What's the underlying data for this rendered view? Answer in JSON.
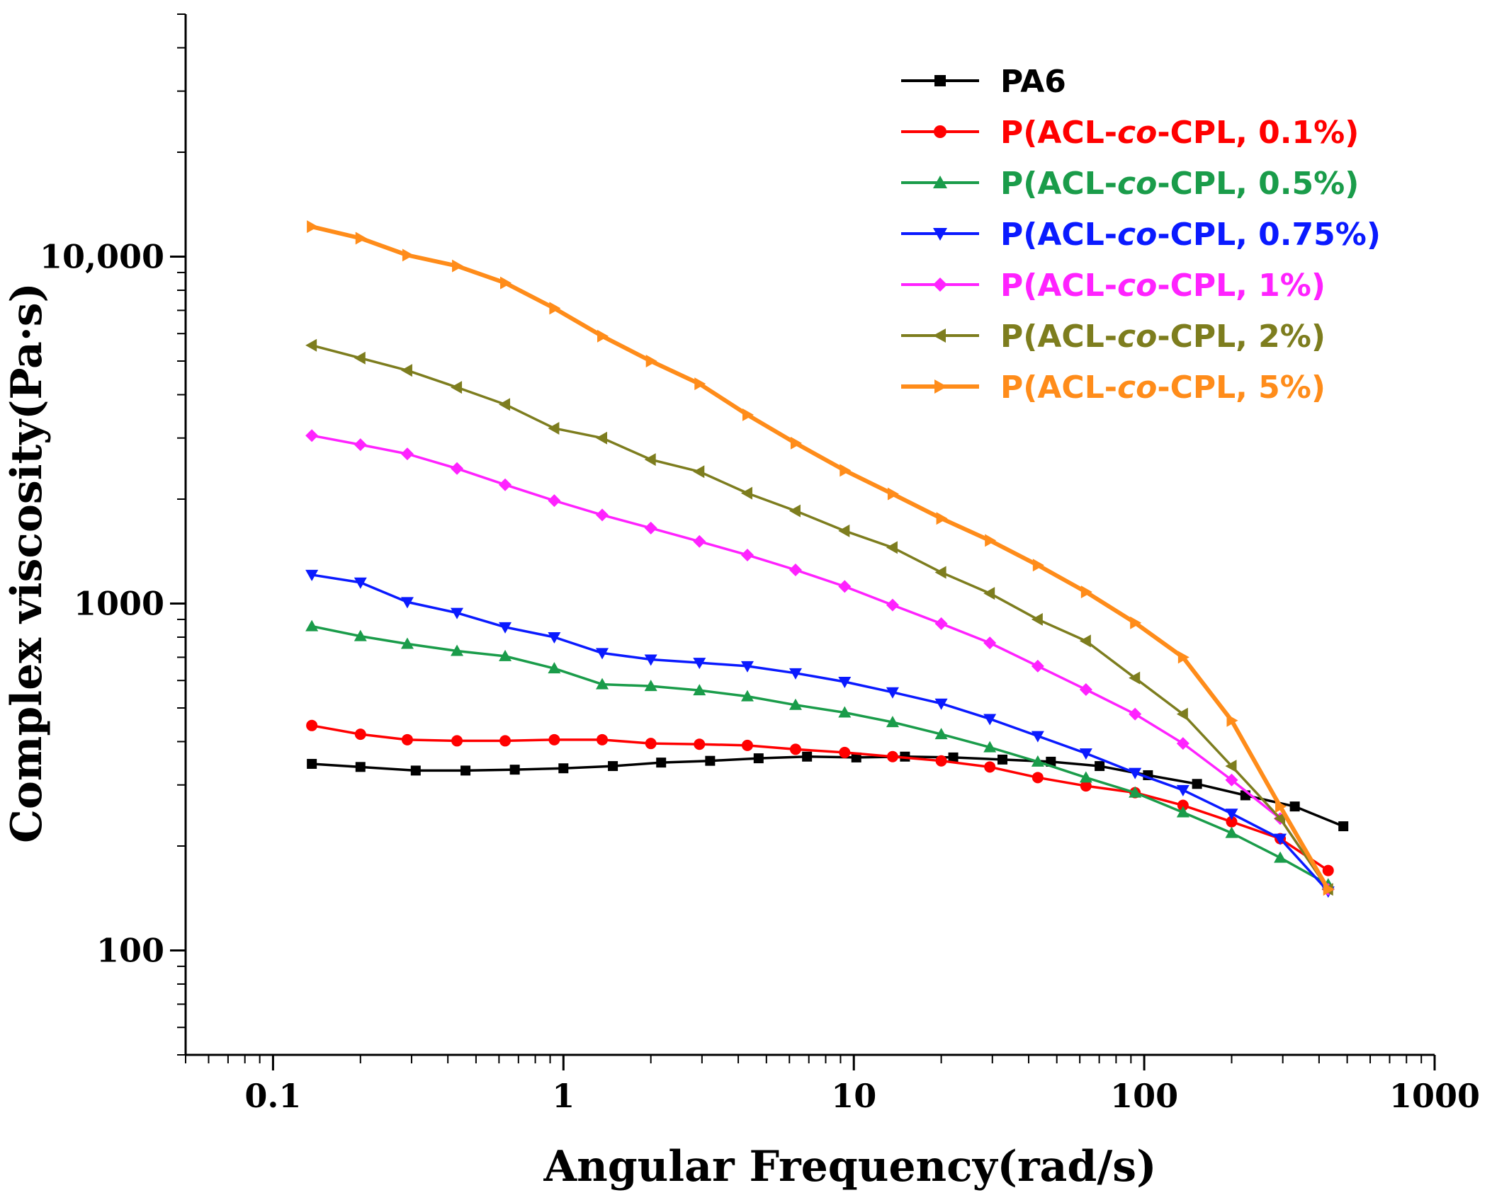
{
  "chart_data": {
    "type": "line",
    "title": "",
    "xlabel": "Angular Frequency(rad/s)",
    "ylabel": "Complex viscosity(Pa·s)",
    "xscale": "log",
    "yscale": "log",
    "xlim": [
      0.05,
      1000
    ],
    "ylim": [
      50,
      50000
    ],
    "x_ticks": [
      {
        "value": 0.1,
        "label": "0.1"
      },
      {
        "value": 1,
        "label": "1"
      },
      {
        "value": 10,
        "label": "10"
      },
      {
        "value": 100,
        "label": "100"
      },
      {
        "value": 1000,
        "label": "1000"
      }
    ],
    "y_ticks": [
      {
        "value": 100,
        "label": "100"
      },
      {
        "value": 1000,
        "label": "1000"
      },
      {
        "value": 10000,
        "label": "10,000"
      }
    ],
    "legend_position": "top-right",
    "series": [
      {
        "name": "PA6",
        "color": "#000000",
        "marker": "square",
        "x": [
          0.136,
          0.2,
          0.31,
          0.46,
          0.68,
          1.0,
          1.48,
          2.17,
          3.2,
          4.7,
          6.9,
          10.2,
          15.0,
          22.0,
          32.5,
          47.7,
          70.2,
          103,
          152,
          223,
          330,
          485
        ],
        "values": [
          345,
          338,
          330,
          330,
          332,
          335,
          340,
          348,
          352,
          358,
          362,
          360,
          362,
          360,
          355,
          350,
          340,
          320,
          302,
          280,
          260,
          228
        ]
      },
      {
        "name": "P(ACL-co-CPL, 0.1%)",
        "label_pre": "P(ACL-",
        "label_ital": "co",
        "label_post": "-CPL, 0.1%)",
        "color": "#ff0000",
        "marker": "circle",
        "x": [
          0.136,
          0.2,
          0.29,
          0.43,
          0.63,
          0.93,
          1.36,
          2.0,
          2.94,
          4.3,
          6.3,
          9.3,
          13.6,
          20.0,
          29.4,
          43.0,
          63.0,
          93.0,
          136,
          200,
          294,
          430
        ],
        "values": [
          445,
          420,
          405,
          402,
          402,
          405,
          405,
          395,
          393,
          390,
          380,
          372,
          362,
          352,
          338,
          315,
          298,
          285,
          262,
          235,
          210,
          170
        ]
      },
      {
        "name": "P(ACL-co-CPL, 0.5%)",
        "label_pre": "P(ACL-",
        "label_ital": "co",
        "label_post": "-CPL, 0.5%)",
        "color": "#1a9c4a",
        "marker": "triangle-up",
        "x": [
          0.136,
          0.2,
          0.29,
          0.43,
          0.63,
          0.93,
          1.36,
          2.0,
          2.94,
          4.3,
          6.3,
          9.3,
          13.6,
          20.0,
          29.4,
          43.0,
          63.0,
          93.0,
          136,
          200,
          294,
          430
        ],
        "values": [
          860,
          805,
          765,
          730,
          705,
          650,
          585,
          578,
          562,
          540,
          510,
          485,
          455,
          420,
          385,
          350,
          315,
          285,
          250,
          218,
          185,
          155
        ]
      },
      {
        "name": "P(ACL-co-CPL, 0.75%)",
        "label_pre": "P(ACL-",
        "label_ital": "co",
        "label_post": "-CPL, 0.75%)",
        "color": "#0a1aff",
        "marker": "triangle-down",
        "x": [
          0.136,
          0.2,
          0.29,
          0.43,
          0.63,
          0.93,
          1.36,
          2.0,
          2.94,
          4.3,
          6.3,
          9.3,
          13.6,
          20.0,
          29.4,
          43.0,
          63.0,
          93.0,
          136,
          200,
          294,
          430
        ],
        "values": [
          1210,
          1150,
          1010,
          940,
          855,
          800,
          720,
          690,
          675,
          660,
          630,
          595,
          555,
          515,
          465,
          415,
          370,
          325,
          290,
          248,
          210,
          148
        ]
      },
      {
        "name": "P(ACL-co-CPL, 1%)",
        "label_pre": "P(ACL-",
        "label_ital": "co",
        "label_post": "-CPL, 1%)",
        "color": "#ff22ff",
        "marker": "diamond",
        "x": [
          0.136,
          0.2,
          0.29,
          0.43,
          0.63,
          0.93,
          1.36,
          2.0,
          2.94,
          4.3,
          6.3,
          9.3,
          13.6,
          20.0,
          29.4,
          43.0,
          63.0,
          93.0,
          136,
          200,
          294,
          430
        ],
        "values": [
          3050,
          2870,
          2700,
          2450,
          2200,
          1980,
          1800,
          1650,
          1510,
          1380,
          1250,
          1120,
          990,
          875,
          770,
          660,
          565,
          480,
          395,
          310,
          240,
          150
        ]
      },
      {
        "name": "P(ACL-co-CPL, 2%)",
        "label_pre": "P(ACL-",
        "label_ital": "co",
        "label_post": "-CPL, 2%)",
        "color": "#7d7d1e",
        "marker": "triangle-left",
        "x": [
          0.136,
          0.2,
          0.29,
          0.43,
          0.63,
          0.93,
          1.36,
          2.0,
          2.94,
          4.3,
          6.3,
          9.3,
          13.6,
          20.0,
          29.4,
          43.0,
          63.0,
          93.0,
          136,
          200,
          294,
          430
        ],
        "values": [
          5550,
          5100,
          4700,
          4200,
          3750,
          3200,
          3000,
          2600,
          2400,
          2080,
          1850,
          1620,
          1450,
          1230,
          1070,
          900,
          780,
          610,
          480,
          340,
          240,
          150
        ]
      },
      {
        "name": "P(ACL-co-CPL, 5%)",
        "label_pre": "P(ACL-",
        "label_ital": "co",
        "label_post": "-CPL, 5%)",
        "color": "#ff8c1a",
        "marker": "triangle-right",
        "x": [
          0.136,
          0.2,
          0.29,
          0.43,
          0.63,
          0.93,
          1.36,
          2.0,
          2.94,
          4.3,
          6.3,
          9.3,
          13.6,
          20.0,
          29.4,
          43.0,
          63.0,
          93.0,
          136,
          200,
          294,
          430
        ],
        "values": [
          12200,
          11300,
          10100,
          9400,
          8400,
          7100,
          5900,
          5000,
          4300,
          3500,
          2900,
          2420,
          2070,
          1760,
          1520,
          1290,
          1080,
          880,
          700,
          460,
          260,
          150
        ]
      }
    ]
  }
}
